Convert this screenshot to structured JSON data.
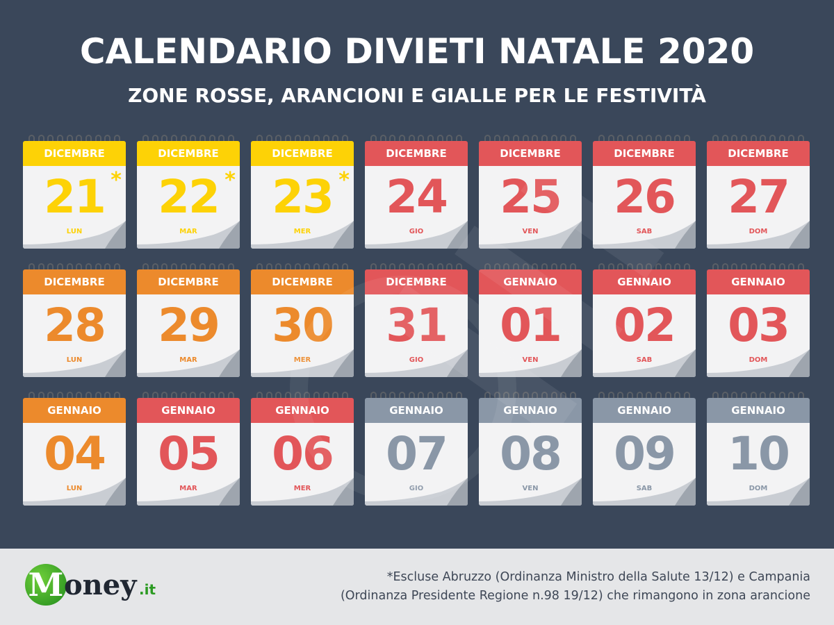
{
  "header": {
    "title": "CALENDARIO DIVIETI NATALE 2020",
    "subtitle": "ZONE ROSSE, ARANCIONI E GIALLE PER LE FESTIVITÀ"
  },
  "colors": {
    "yellow": "#fdd206",
    "orange": "#ec8a2c",
    "red": "#e25659",
    "gray": "#8a97a7",
    "background": "#3a475a"
  },
  "calendar": [
    {
      "month": "DICEMBRE",
      "day": "21",
      "weekday": "LUN",
      "zone": "yellow",
      "note_mark": "*"
    },
    {
      "month": "DICEMBRE",
      "day": "22",
      "weekday": "MAR",
      "zone": "yellow",
      "note_mark": "*"
    },
    {
      "month": "DICEMBRE",
      "day": "23",
      "weekday": "MER",
      "zone": "yellow",
      "note_mark": "*"
    },
    {
      "month": "DICEMBRE",
      "day": "24",
      "weekday": "GIO",
      "zone": "red",
      "note_mark": ""
    },
    {
      "month": "DICEMBRE",
      "day": "25",
      "weekday": "VEN",
      "zone": "red",
      "note_mark": ""
    },
    {
      "month": "DICEMBRE",
      "day": "26",
      "weekday": "SAB",
      "zone": "red",
      "note_mark": ""
    },
    {
      "month": "DICEMBRE",
      "day": "27",
      "weekday": "DOM",
      "zone": "red",
      "note_mark": ""
    },
    {
      "month": "DICEMBRE",
      "day": "28",
      "weekday": "LUN",
      "zone": "orange",
      "note_mark": ""
    },
    {
      "month": "DICEMBRE",
      "day": "29",
      "weekday": "MAR",
      "zone": "orange",
      "note_mark": ""
    },
    {
      "month": "DICEMBRE",
      "day": "30",
      "weekday": "MER",
      "zone": "orange",
      "note_mark": ""
    },
    {
      "month": "DICEMBRE",
      "day": "31",
      "weekday": "GIO",
      "zone": "red",
      "note_mark": ""
    },
    {
      "month": "GENNAIO",
      "day": "01",
      "weekday": "VEN",
      "zone": "red",
      "note_mark": ""
    },
    {
      "month": "GENNAIO",
      "day": "02",
      "weekday": "SAB",
      "zone": "red",
      "note_mark": ""
    },
    {
      "month": "GENNAIO",
      "day": "03",
      "weekday": "DOM",
      "zone": "red",
      "note_mark": ""
    },
    {
      "month": "GENNAIO",
      "day": "04",
      "weekday": "LUN",
      "zone": "orange",
      "note_mark": ""
    },
    {
      "month": "GENNAIO",
      "day": "05",
      "weekday": "MAR",
      "zone": "red",
      "note_mark": ""
    },
    {
      "month": "GENNAIO",
      "day": "06",
      "weekday": "MER",
      "zone": "red",
      "note_mark": ""
    },
    {
      "month": "GENNAIO",
      "day": "07",
      "weekday": "GIO",
      "zone": "gray",
      "note_mark": ""
    },
    {
      "month": "GENNAIO",
      "day": "08",
      "weekday": "VEN",
      "zone": "gray",
      "note_mark": ""
    },
    {
      "month": "GENNAIO",
      "day": "09",
      "weekday": "SAB",
      "zone": "gray",
      "note_mark": ""
    },
    {
      "month": "GENNAIO",
      "day": "10",
      "weekday": "DOM",
      "zone": "gray",
      "note_mark": ""
    }
  ],
  "footer": {
    "logo_letter": "M",
    "logo_word": "oney",
    "logo_suffix": ".it",
    "note_line1": "*Escluse Abruzzo (Ordinanza Ministro della Salute 13/12) e Campania",
    "note_line2": "(Ordinanza Presidente Regione n.98 19/12) che rimangono in zona arancione"
  }
}
